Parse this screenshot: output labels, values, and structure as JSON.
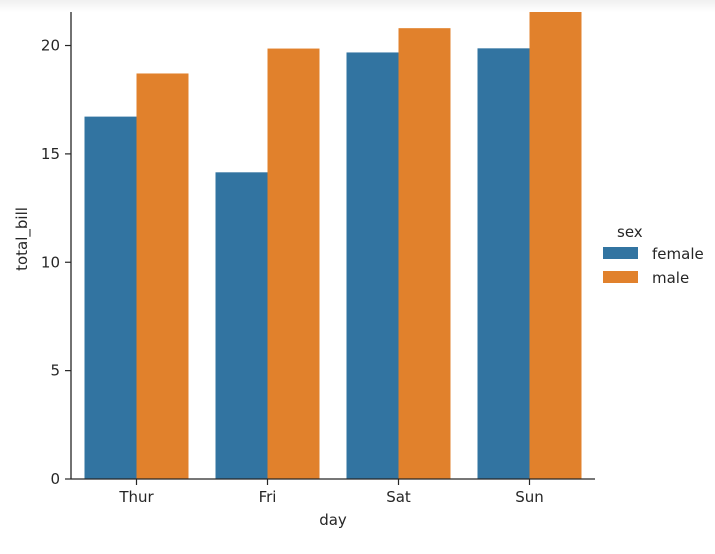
{
  "chart_data": {
    "type": "bar",
    "title": "",
    "xlabel": "day",
    "ylabel": "total_bill",
    "categories": [
      "Thur",
      "Fri",
      "Sat",
      "Sun"
    ],
    "series": [
      {
        "name": "female",
        "values": [
          16.72,
          14.15,
          19.68,
          19.87
        ],
        "color": "#3274a1"
      },
      {
        "name": "male",
        "values": [
          18.71,
          19.86,
          20.8,
          21.89
        ],
        "color": "#e1812c"
      }
    ],
    "ylim": [
      0,
      22.1
    ],
    "yticks": [
      0,
      5,
      10,
      15,
      20
    ],
    "grid": false,
    "legend": {
      "title": "sex",
      "placement": "right"
    }
  }
}
